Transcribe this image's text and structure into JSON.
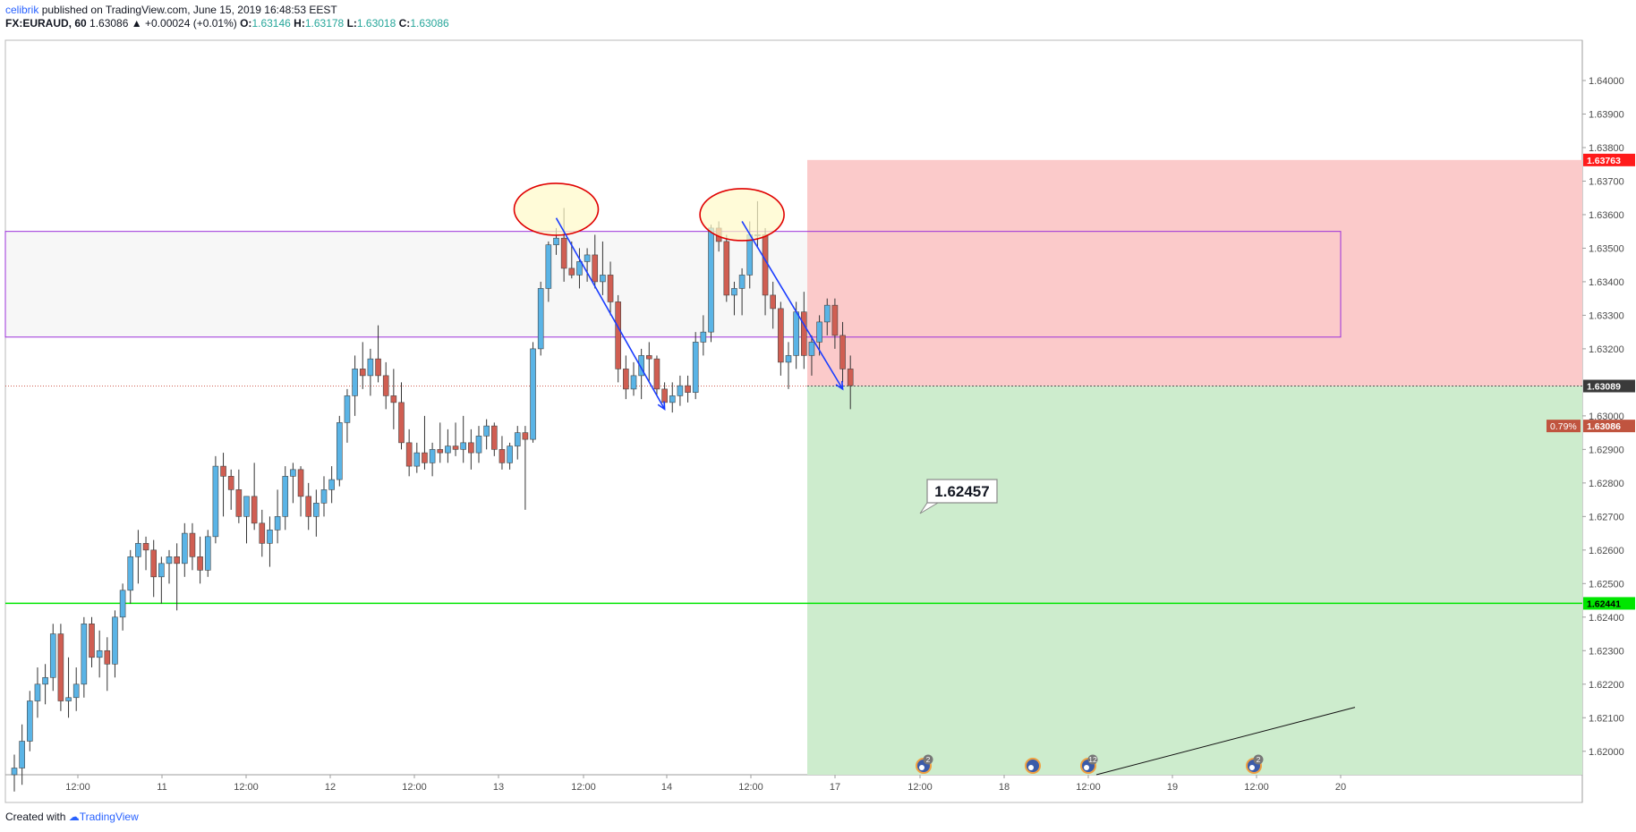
{
  "header": {
    "author": "celibrik",
    "published_text": "published on TradingView.com, June 15, 2019 16:48:53 EEST",
    "symbol": "FX:EURAUD, 60",
    "last": "1.63086",
    "change": "+0.00024 (+0.01%)",
    "o_label": "O:",
    "o_value": "1.63146",
    "h_label": "H:",
    "h_value": "1.63178",
    "l_label": "L:",
    "l_value": "1.63018",
    "c_label": "C:",
    "c_value": "1.63086"
  },
  "footer": {
    "created_with": "Created with",
    "brand": "TradingView"
  },
  "colors": {
    "up": "#5ab4e6",
    "down": "#d05e52",
    "wick": "#333333",
    "green_line": "#00e600",
    "purple": "#9b30d9"
  },
  "chart_data": {
    "type": "candlestick",
    "ylim": [
      1.6193,
      1.6412
    ],
    "y_ticks": [
      "1.64000",
      "1.63900",
      "1.63800",
      "1.63700",
      "1.63600",
      "1.63500",
      "1.63400",
      "1.63300",
      "1.63200",
      "1.63000",
      "1.62900",
      "1.62800",
      "1.62700",
      "1.62600",
      "1.62500",
      "1.62400",
      "1.62300",
      "1.62200",
      "1.62100",
      "1.62000"
    ],
    "x_ticks": [
      "12:00",
      "11",
      "12:00",
      "12",
      "12:00",
      "13",
      "12:00",
      "14",
      "12:00",
      "17",
      "12:00",
      "18",
      "12:00",
      "19",
      "12:00",
      "20"
    ],
    "price_labels": {
      "target_top": "1.63763",
      "entry": "1.63089",
      "last": "1.63086",
      "last_pct": "0.79%",
      "support": "1.62441"
    },
    "callout": "1.62457",
    "zones": {
      "resistance_band": [
        1.63235,
        1.6355
      ],
      "stop_zone": [
        1.63089,
        1.63763
      ],
      "profit_zone": [
        1.6193,
        1.63089
      ]
    },
    "events": [
      "2",
      "",
      "12",
      "2"
    ],
    "candles": [
      [
        1.6193,
        1.6199,
        1.6188,
        1.6195
      ],
      [
        1.6195,
        1.6208,
        1.619,
        1.6203
      ],
      [
        1.6203,
        1.6218,
        1.62,
        1.6215
      ],
      [
        1.6215,
        1.6225,
        1.621,
        1.622
      ],
      [
        1.622,
        1.6226,
        1.6214,
        1.6222
      ],
      [
        1.6222,
        1.6238,
        1.6218,
        1.6235
      ],
      [
        1.6235,
        1.6238,
        1.6212,
        1.6215
      ],
      [
        1.6215,
        1.6228,
        1.621,
        1.6216
      ],
      [
        1.6216,
        1.6225,
        1.6212,
        1.622
      ],
      [
        1.622,
        1.624,
        1.6216,
        1.6238
      ],
      [
        1.6238,
        1.624,
        1.6225,
        1.6228
      ],
      [
        1.6228,
        1.6236,
        1.6222,
        1.623
      ],
      [
        1.623,
        1.6234,
        1.6218,
        1.6226
      ],
      [
        1.6226,
        1.6242,
        1.6222,
        1.624
      ],
      [
        1.624,
        1.625,
        1.6236,
        1.6248
      ],
      [
        1.6248,
        1.626,
        1.6244,
        1.6258
      ],
      [
        1.6258,
        1.6266,
        1.625,
        1.6262
      ],
      [
        1.6262,
        1.6264,
        1.6254,
        1.626
      ],
      [
        1.626,
        1.6263,
        1.6246,
        1.6252
      ],
      [
        1.6252,
        1.6258,
        1.6244,
        1.6256
      ],
      [
        1.6256,
        1.626,
        1.625,
        1.6258
      ],
      [
        1.6258,
        1.6262,
        1.6242,
        1.6256
      ],
      [
        1.6256,
        1.6268,
        1.6252,
        1.6265
      ],
      [
        1.6265,
        1.6268,
        1.6254,
        1.6258
      ],
      [
        1.6258,
        1.6264,
        1.625,
        1.6254
      ],
      [
        1.6254,
        1.6266,
        1.6252,
        1.6264
      ],
      [
        1.6264,
        1.6288,
        1.6262,
        1.6285
      ],
      [
        1.6285,
        1.6289,
        1.627,
        1.6282
      ],
      [
        1.6282,
        1.6284,
        1.6272,
        1.6278
      ],
      [
        1.6278,
        1.6284,
        1.6268,
        1.627
      ],
      [
        1.627,
        1.6276,
        1.6262,
        1.6276
      ],
      [
        1.6276,
        1.6286,
        1.6266,
        1.6268
      ],
      [
        1.6268,
        1.6272,
        1.6258,
        1.6262
      ],
      [
        1.6262,
        1.627,
        1.6255,
        1.6266
      ],
      [
        1.6266,
        1.6278,
        1.6262,
        1.627
      ],
      [
        1.627,
        1.6285,
        1.6266,
        1.6282
      ],
      [
        1.6282,
        1.6286,
        1.6274,
        1.6284
      ],
      [
        1.6284,
        1.6285,
        1.627,
        1.6276
      ],
      [
        1.6276,
        1.628,
        1.6266,
        1.627
      ],
      [
        1.627,
        1.6278,
        1.6264,
        1.6274
      ],
      [
        1.6274,
        1.6282,
        1.627,
        1.6278
      ],
      [
        1.6278,
        1.6285,
        1.6274,
        1.6281
      ],
      [
        1.6281,
        1.63,
        1.6279,
        1.6298
      ],
      [
        1.6298,
        1.6308,
        1.6292,
        1.6306
      ],
      [
        1.6306,
        1.6318,
        1.63,
        1.6314
      ],
      [
        1.6314,
        1.6322,
        1.6308,
        1.6312
      ],
      [
        1.6312,
        1.632,
        1.6306,
        1.6317
      ],
      [
        1.6317,
        1.6327,
        1.631,
        1.6312
      ],
      [
        1.6312,
        1.6316,
        1.6302,
        1.6306
      ],
      [
        1.6306,
        1.6314,
        1.6296,
        1.6304
      ],
      [
        1.6304,
        1.631,
        1.629,
        1.6292
      ],
      [
        1.6292,
        1.6296,
        1.6282,
        1.6285
      ],
      [
        1.6285,
        1.6292,
        1.6283,
        1.6289
      ],
      [
        1.6289,
        1.63,
        1.6284,
        1.6286
      ],
      [
        1.6286,
        1.6292,
        1.6282,
        1.629
      ],
      [
        1.629,
        1.6298,
        1.6286,
        1.6289
      ],
      [
        1.6289,
        1.6296,
        1.6286,
        1.6291
      ],
      [
        1.6291,
        1.6298,
        1.6288,
        1.629
      ],
      [
        1.629,
        1.63,
        1.6286,
        1.6292
      ],
      [
        1.6292,
        1.6296,
        1.6284,
        1.6289
      ],
      [
        1.6289,
        1.6297,
        1.6286,
        1.6294
      ],
      [
        1.6294,
        1.6299,
        1.629,
        1.6297
      ],
      [
        1.6297,
        1.6298,
        1.6288,
        1.629
      ],
      [
        1.629,
        1.6294,
        1.6284,
        1.6286
      ],
      [
        1.6286,
        1.6292,
        1.6284,
        1.6291
      ],
      [
        1.6291,
        1.6297,
        1.6287,
        1.6295
      ],
      [
        1.6295,
        1.6297,
        1.6272,
        1.6293
      ],
      [
        1.6293,
        1.6322,
        1.6292,
        1.632
      ],
      [
        1.632,
        1.634,
        1.6318,
        1.6338
      ],
      [
        1.6338,
        1.6352,
        1.6334,
        1.6351
      ],
      [
        1.6351,
        1.6356,
        1.6348,
        1.6353
      ],
      [
        1.6353,
        1.6362,
        1.634,
        1.6344
      ],
      [
        1.6344,
        1.6352,
        1.6341,
        1.6342
      ],
      [
        1.6342,
        1.635,
        1.6338,
        1.6346
      ],
      [
        1.6346,
        1.635,
        1.634,
        1.6348
      ],
      [
        1.6348,
        1.6354,
        1.6338,
        1.634
      ],
      [
        1.634,
        1.6352,
        1.6336,
        1.6342
      ],
      [
        1.6342,
        1.6346,
        1.633,
        1.6334
      ],
      [
        1.6334,
        1.6336,
        1.631,
        1.6314
      ],
      [
        1.6314,
        1.6318,
        1.6305,
        1.6308
      ],
      [
        1.6308,
        1.6316,
        1.6306,
        1.6312
      ],
      [
        1.6312,
        1.632,
        1.6305,
        1.6318
      ],
      [
        1.6318,
        1.6322,
        1.631,
        1.6317
      ],
      [
        1.6317,
        1.6318,
        1.6306,
        1.6308
      ],
      [
        1.6308,
        1.631,
        1.6302,
        1.6304
      ],
      [
        1.6304,
        1.631,
        1.6301,
        1.6306
      ],
      [
        1.6306,
        1.6312,
        1.6303,
        1.6309
      ],
      [
        1.6309,
        1.6312,
        1.6304,
        1.6307
      ],
      [
        1.6307,
        1.6325,
        1.6305,
        1.6322
      ],
      [
        1.6322,
        1.633,
        1.6318,
        1.6325
      ],
      [
        1.6325,
        1.6357,
        1.6322,
        1.6356
      ],
      [
        1.6356,
        1.6358,
        1.6349,
        1.6352
      ],
      [
        1.6352,
        1.6354,
        1.6334,
        1.6336
      ],
      [
        1.6336,
        1.634,
        1.633,
        1.6338
      ],
      [
        1.6338,
        1.6344,
        1.633,
        1.6342
      ],
      [
        1.6342,
        1.6358,
        1.6338,
        1.6354
      ],
      [
        1.6354,
        1.6364,
        1.635,
        1.6354
      ],
      [
        1.6354,
        1.6356,
        1.633,
        1.6336
      ],
      [
        1.6336,
        1.634,
        1.6326,
        1.6332
      ],
      [
        1.6332,
        1.6334,
        1.6312,
        1.6316
      ],
      [
        1.6316,
        1.6322,
        1.6308,
        1.6318
      ],
      [
        1.6318,
        1.6334,
        1.6314,
        1.6331
      ],
      [
        1.6331,
        1.6337,
        1.6314,
        1.6318
      ],
      [
        1.6318,
        1.6324,
        1.6312,
        1.6322
      ],
      [
        1.6322,
        1.633,
        1.6318,
        1.6328
      ],
      [
        1.6328,
        1.6335,
        1.6324,
        1.6333
      ],
      [
        1.6333,
        1.6335,
        1.632,
        1.6324
      ],
      [
        1.6324,
        1.6328,
        1.631,
        1.6314
      ],
      [
        1.6314,
        1.6318,
        1.6302,
        1.6309
      ]
    ]
  }
}
